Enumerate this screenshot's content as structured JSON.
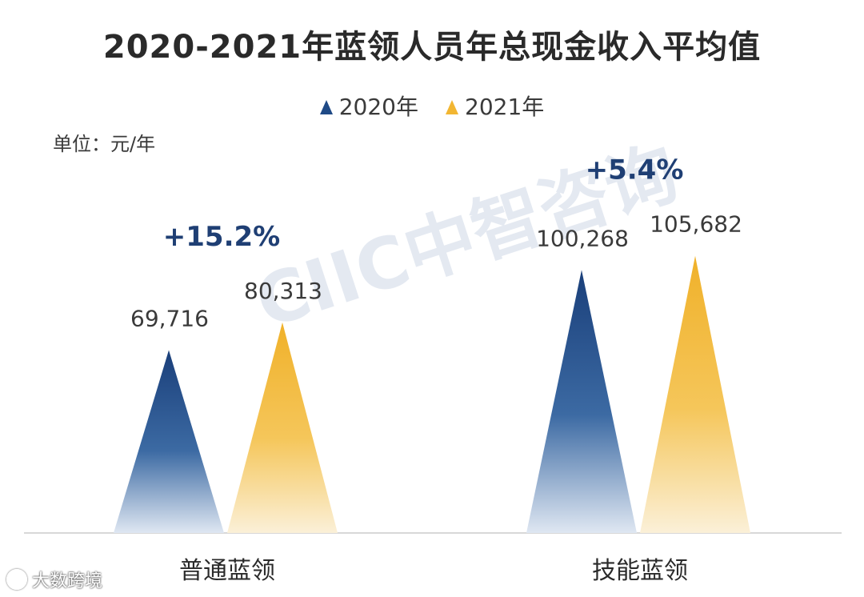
{
  "chart_data": {
    "type": "bar",
    "title": "2020-2021年蓝领人员年总现金收入平均值",
    "unit": "单位：元/年",
    "categories": [
      "普通蓝领",
      "技能蓝领"
    ],
    "series": [
      {
        "name": "2020年",
        "color": "#1f4a86",
        "values": [
          69716,
          100268
        ]
      },
      {
        "name": "2021年",
        "color": "#f2b632",
        "values": [
          80313,
          105682
        ]
      }
    ],
    "value_labels": [
      [
        "69,716",
        "100,268"
      ],
      [
        "80,313",
        "105,682"
      ]
    ],
    "growth_labels": [
      "+15.2%",
      "+5.4%"
    ],
    "ylim": [
      0,
      130000
    ],
    "legend_position": "top-center",
    "grid": false,
    "bar_shape": "triangle"
  },
  "watermark": "CIIC中智咨询",
  "footer": "大数跨境"
}
